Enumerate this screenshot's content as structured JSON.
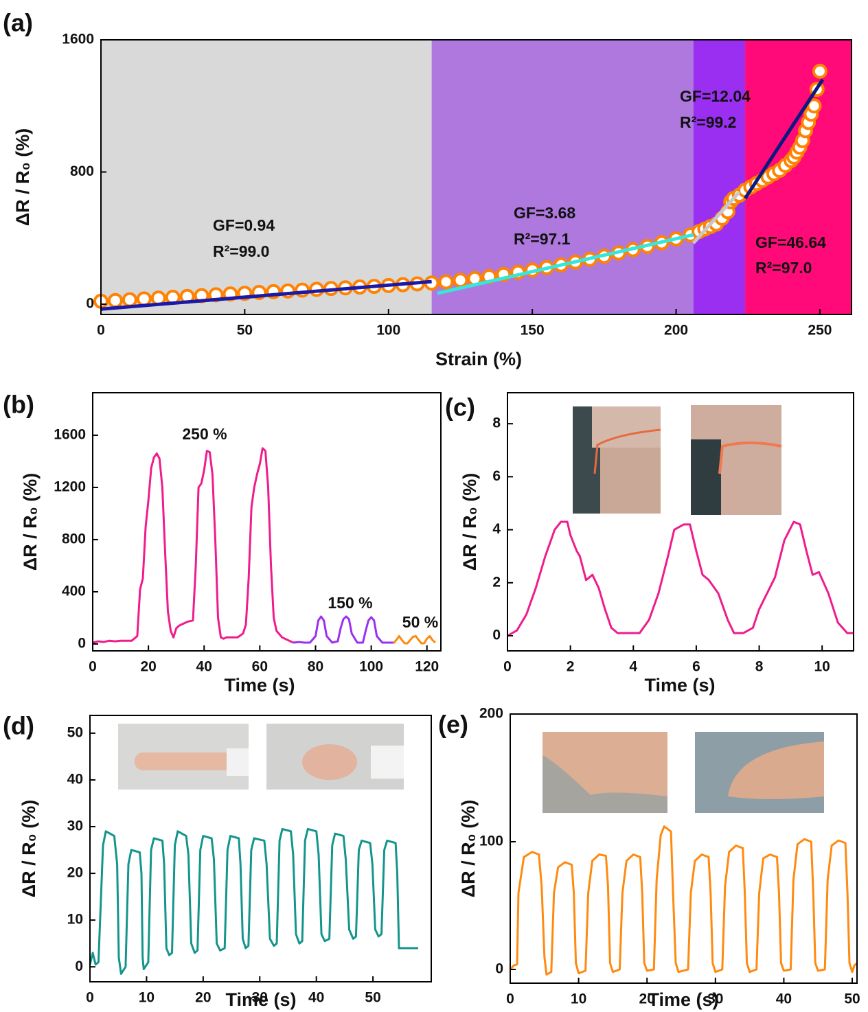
{
  "chart_data": [
    {
      "type": "scatter",
      "panel_label": "(a)",
      "x_label": "Strain (%)",
      "y_label": "ΔR / R₀ (%)",
      "xlim": [
        0,
        261
      ],
      "ylim": [
        -62,
        1600
      ],
      "xticks": [
        0,
        50,
        100,
        150,
        200,
        250
      ],
      "yticks": [
        0,
        800,
        1600
      ],
      "regions": [
        {
          "x": [
            0,
            115
          ],
          "color": "#d9d9d9"
        },
        {
          "x": [
            115,
            206
          ],
          "color": "#ae78de"
        },
        {
          "x": [
            206,
            224
          ],
          "color": "#9a2ff2"
        },
        {
          "x": [
            224,
            261
          ],
          "color": "#ff0a78"
        }
      ],
      "scatter": {
        "color": "#ff8200",
        "x": [
          0,
          5,
          10,
          15,
          20,
          25,
          30,
          35,
          40,
          45,
          50,
          55,
          60,
          65,
          70,
          75,
          80,
          85,
          90,
          95,
          100,
          105,
          110,
          115,
          120,
          125,
          130,
          135,
          140,
          145,
          150,
          155,
          160,
          165,
          170,
          175,
          180,
          185,
          190,
          195,
          200,
          205,
          208,
          210,
          212,
          214,
          216,
          218,
          219,
          220,
          222,
          224,
          226,
          228,
          230,
          232,
          234,
          236,
          238,
          240,
          241,
          242,
          243,
          244,
          245,
          246,
          247,
          248,
          249,
          250
        ],
        "values": [
          18,
          22,
          27,
          32,
          37,
          42,
          47,
          52,
          57,
          62,
          66,
          71,
          76,
          80,
          85,
          90,
          95,
          99,
          104,
          108,
          113,
          118,
          123,
          128,
          135,
          145,
          155,
          167,
          180,
          193,
          207,
          222,
          238,
          255,
          272,
          290,
          310,
          330,
          350,
          372,
          395,
          420,
          440,
          455,
          470,
          485,
          520,
          560,
          620,
          640,
          660,
          690,
          710,
          730,
          750,
          770,
          790,
          810,
          840,
          870,
          890,
          920,
          950,
          990,
          1050,
          1100,
          1150,
          1200,
          1300,
          1410
        ]
      },
      "fits": [
        {
          "x": [
            0,
            115
          ],
          "values": [
            -30,
            137
          ],
          "color": "#1a1aa8"
        },
        {
          "x": [
            117,
            206
          ],
          "values": [
            66,
            420
          ],
          "color": "#36e6dc"
        },
        {
          "x": [
            206,
            222
          ],
          "values": [
            370,
            680
          ],
          "color": "#c8c8c8"
        },
        {
          "x": [
            224,
            251
          ],
          "values": [
            640,
            1360
          ],
          "color": "#0c1a80"
        }
      ],
      "annotations": [
        "GF=0.94",
        "R²=99.0",
        "GF=3.68",
        "R²=97.1",
        "GF=12.04",
        "R²=99.2",
        "GF=46.64",
        "R²=97.0"
      ]
    },
    {
      "type": "line",
      "panel_label": "(b)",
      "x_label": "Time (s)",
      "y_label": "ΔR / R₀ (%)",
      "xlim": [
        0,
        125
      ],
      "ylim": [
        -53,
        1926
      ],
      "xticks": [
        0,
        20,
        40,
        60,
        80,
        100,
        120
      ],
      "yticks": [
        0,
        400,
        800,
        1200,
        1600
      ],
      "series": [
        {
          "color": "#f01b8c",
          "x": [
            0,
            2,
            4,
            6,
            8,
            10,
            12,
            14,
            16,
            17,
            18,
            19,
            20,
            21,
            22,
            23,
            24,
            25,
            26,
            27,
            28,
            29,
            30,
            31,
            32,
            34,
            36,
            37,
            38,
            39,
            40,
            41,
            42,
            43,
            44,
            45,
            46,
            47,
            48,
            50,
            52,
            54,
            55,
            56,
            57,
            58,
            59,
            60,
            61,
            62,
            63,
            64,
            65,
            66,
            68,
            70,
            72
          ],
          "values": [
            10,
            20,
            15,
            25,
            20,
            25,
            25,
            25,
            60,
            420,
            500,
            900,
            1100,
            1350,
            1430,
            1460,
            1420,
            1200,
            700,
            250,
            100,
            50,
            120,
            140,
            150,
            170,
            180,
            600,
            1200,
            1230,
            1330,
            1480,
            1470,
            1300,
            800,
            200,
            50,
            40,
            50,
            50,
            50,
            80,
            150,
            500,
            1050,
            1200,
            1300,
            1380,
            1500,
            1480,
            1200,
            600,
            200,
            100,
            50,
            30,
            10
          ]
        },
        {
          "color": "#9b30f0",
          "x": [
            72,
            74,
            76,
            78,
            80,
            81,
            82,
            83,
            84,
            86,
            88,
            89,
            90,
            91,
            92,
            93,
            95,
            97,
            98,
            99,
            100,
            101,
            102,
            104,
            106,
            108
          ],
          "values": [
            10,
            15,
            10,
            10,
            60,
            180,
            210,
            180,
            60,
            10,
            20,
            120,
            190,
            210,
            190,
            80,
            10,
            10,
            100,
            180,
            205,
            180,
            60,
            10,
            10,
            10
          ]
        },
        {
          "color": "#ff8a10",
          "x": [
            108,
            109,
            110,
            111,
            112,
            113,
            114,
            115,
            116,
            117,
            118,
            119,
            120,
            121,
            122,
            123
          ],
          "values": [
            5,
            30,
            60,
            30,
            5,
            5,
            30,
            55,
            60,
            30,
            5,
            5,
            40,
            60,
            30,
            10
          ]
        }
      ],
      "annotations": [
        "250 %",
        "150 %",
        "50 %"
      ]
    },
    {
      "type": "line",
      "panel_label": "(c)",
      "x_label": "Time (s)",
      "y_label": "ΔR / R₀ (%)",
      "xlim": [
        0,
        11
      ],
      "ylim": [
        -0.57,
        9.17
      ],
      "xticks": [
        0,
        2,
        4,
        6,
        8,
        10
      ],
      "yticks": [
        0,
        2,
        4,
        6,
        8
      ],
      "series": [
        {
          "color": "#f01b8c",
          "x": [
            0,
            0.3,
            0.6,
            0.9,
            1.2,
            1.5,
            1.7,
            1.9,
            2.0,
            2.2,
            2.3,
            2.5,
            2.7,
            2.9,
            3.1,
            3.3,
            3.5,
            3.9,
            4.2,
            4.5,
            4.8,
            5.1,
            5.3,
            5.6,
            5.8,
            6.0,
            6.2,
            6.4,
            6.7,
            7.0,
            7.2,
            7.5,
            7.8,
            8.0,
            8.5,
            8.8,
            9.1,
            9.3,
            9.5,
            9.7,
            9.9,
            10.2,
            10.5,
            10.8,
            11
          ],
          "values": [
            0,
            0.2,
            0.8,
            1.8,
            3.0,
            4.0,
            4.3,
            4.3,
            3.8,
            3.2,
            3.0,
            2.1,
            2.3,
            1.8,
            1.0,
            0.3,
            0.1,
            0.1,
            0.1,
            0.6,
            1.6,
            3.0,
            4.0,
            4.2,
            4.2,
            3.2,
            2.3,
            2.1,
            1.6,
            0.6,
            0.1,
            0.1,
            0.3,
            1.0,
            2.2,
            3.6,
            4.3,
            4.2,
            3.2,
            2.3,
            2.4,
            1.6,
            0.5,
            0.1,
            0.1
          ]
        }
      ],
      "annotations": []
    },
    {
      "type": "line",
      "panel_label": "(d)",
      "x_label": "Time (s)",
      "y_label": "ΔR / R₀ (%)",
      "xlim": [
        0,
        60.3
      ],
      "ylim": [
        -3.2,
        53.8
      ],
      "xticks": [
        0,
        10,
        20,
        30,
        40,
        50
      ],
      "yticks": [
        0,
        10,
        20,
        30,
        40,
        50
      ],
      "series": [
        {
          "color": "#13958c",
          "x": [
            0,
            0.5,
            1,
            1.5,
            2.3,
            2.8,
            4.3,
            4.8,
            5.1,
            5.5,
            6.3,
            6.8,
            7.3,
            8.8,
            9.1,
            9.3,
            9.5,
            10.3,
            10.8,
            11.3,
            12.8,
            13.1,
            13.5,
            14,
            14.5,
            15,
            15.5,
            17,
            17.4,
            17.9,
            18.5,
            19,
            19.5,
            20,
            21.5,
            21.9,
            22.4,
            23,
            23.8,
            24.3,
            24.8,
            26.3,
            26.6,
            27,
            27.5,
            28,
            28.5,
            29,
            30.8,
            31.2,
            31.8,
            32.5,
            33,
            33.5,
            34,
            35.5,
            35.9,
            36.4,
            37,
            37.5,
            38,
            38.5,
            40,
            40.4,
            40.9,
            41.5,
            42.3,
            42.8,
            43.3,
            44.8,
            45.2,
            45.8,
            46.5,
            47,
            47.5,
            48,
            49.5,
            49.9,
            50.4,
            51,
            51.5,
            52,
            52.5,
            54,
            54.3,
            54.6,
            55.5,
            58
          ],
          "values": [
            0.5,
            3,
            0.5,
            1,
            26,
            29,
            28,
            22,
            2,
            -1.5,
            0,
            22,
            25,
            24.5,
            20,
            2,
            -0.5,
            1,
            25,
            27.5,
            27,
            22,
            4,
            2.5,
            3,
            26,
            29,
            28,
            24,
            5,
            3,
            3.5,
            25,
            28,
            27.5,
            23,
            5,
            3.5,
            4,
            25,
            28,
            27.5,
            22,
            6,
            4,
            4.5,
            25,
            27.5,
            27,
            22,
            6,
            4.5,
            5,
            27,
            29.5,
            29,
            24,
            7,
            5,
            5.5,
            27,
            29.5,
            29,
            24,
            7,
            5.5,
            6,
            26,
            28.5,
            28,
            23,
            8,
            6,
            6.5,
            25,
            27,
            26.5,
            22,
            8,
            6.5,
            7,
            25,
            27,
            26.5,
            20,
            4,
            4,
            4
          ]
        }
      ],
      "annotations": []
    },
    {
      "type": "line",
      "panel_label": "(e)",
      "x_label": "Time (s)",
      "y_label": "ΔR / R₀ (%)",
      "xlim": [
        0,
        50.7
      ],
      "ylim": [
        -10.75,
        200
      ],
      "xticks": [
        0,
        10,
        20,
        30,
        40,
        50
      ],
      "yticks": [
        0,
        100,
        200
      ],
      "series": [
        {
          "color": "#ff8a10",
          "x": [
            0,
            0.5,
            1,
            1.2,
            2,
            3.2,
            4.2,
            4.6,
            5,
            5.3,
            6,
            6.4,
            7,
            8,
            9,
            9.3,
            9.6,
            10,
            11,
            11.4,
            12,
            13,
            14,
            14.3,
            14.6,
            15,
            16,
            16.4,
            17,
            18,
            19,
            19.3,
            19.6,
            20,
            21,
            21.4,
            22,
            22.5,
            23.5,
            23.8,
            24.2,
            24.6,
            26,
            26.4,
            27,
            28,
            29,
            29.3,
            29.6,
            30,
            31,
            31.4,
            32,
            33,
            34,
            34.3,
            34.6,
            35,
            36,
            36.4,
            37,
            38,
            39,
            39.3,
            39.6,
            40,
            41,
            41.4,
            42,
            43,
            44,
            44.3,
            44.6,
            45,
            46,
            46.4,
            47,
            48,
            49,
            49.3,
            49.6,
            50,
            50.3,
            50.7
          ],
          "values": [
            0,
            3,
            4,
            60,
            88,
            92,
            90,
            65,
            10,
            -4,
            -2,
            60,
            80,
            84,
            82,
            60,
            5,
            -3,
            -1,
            60,
            85,
            90,
            89,
            65,
            5,
            -2,
            0,
            60,
            85,
            90,
            88,
            60,
            5,
            -1,
            0,
            70,
            105,
            112,
            108,
            60,
            5,
            -2,
            0,
            60,
            85,
            90,
            88,
            60,
            5,
            -2,
            0,
            65,
            92,
            97,
            95,
            60,
            5,
            -2,
            0,
            60,
            87,
            90,
            88,
            60,
            5,
            -1,
            0,
            70,
            98,
            102,
            100,
            60,
            5,
            -1,
            0,
            70,
            97,
            101,
            99,
            60,
            5,
            -2,
            3,
            5
          ]
        }
      ],
      "annotations": []
    }
  ]
}
